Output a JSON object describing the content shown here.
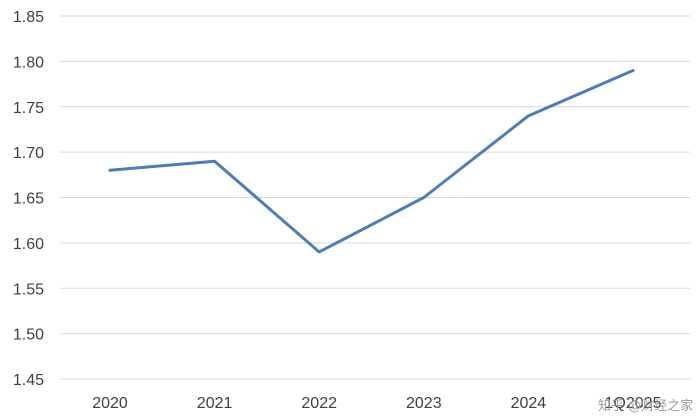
{
  "chart_data": {
    "type": "line",
    "title": "",
    "xlabel": "",
    "ylabel": "",
    "categories": [
      "2020",
      "2021",
      "2022",
      "2023",
      "2024",
      "1Q2025"
    ],
    "series": [
      {
        "values": [
          1.68,
          1.69,
          1.59,
          1.65,
          1.74,
          1.79
        ]
      }
    ],
    "ylim": [
      1.45,
      1.85
    ],
    "y_ticks": [
      "1.45",
      "1.50",
      "1.55",
      "1.60",
      "1.65",
      "1.70",
      "1.75",
      "1.80",
      "1.85"
    ],
    "grid": "horizontal",
    "legend": "none",
    "colors": {
      "line": "#4a7ebb",
      "grid": "#d9d9d9",
      "text": "#404040"
    }
  },
  "watermark": {
    "text": "知乎 @财经之家"
  }
}
